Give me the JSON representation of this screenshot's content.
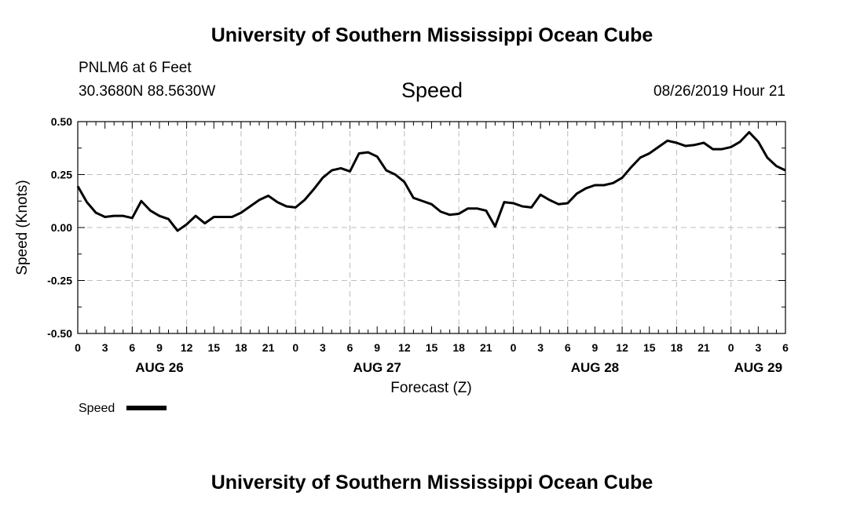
{
  "header": {
    "title": "University of Southern Mississippi Ocean Cube",
    "station": "PNLM6 at 6 Feet",
    "coords": "30.3680N 88.5630W",
    "plot_title": "Speed",
    "issued": "08/26/2019 Hour 21"
  },
  "footer": {
    "title": "University of Southern Mississippi Ocean Cube"
  },
  "legend": {
    "label": "Speed"
  },
  "chart_data": {
    "type": "line",
    "title": "Speed",
    "xlabel": "Forecast (Z)",
    "ylabel": "Speed (Knots)",
    "ylim": [
      -0.5,
      0.5
    ],
    "yticks": [
      -0.5,
      -0.25,
      0.0,
      0.25,
      0.5
    ],
    "ytick_labels": [
      "-0.50",
      "-0.25",
      "0.00",
      "0.25",
      "0.50"
    ],
    "xlim_hours": [
      0,
      78
    ],
    "xtick_hours": [
      0,
      3,
      6,
      9,
      12,
      15,
      18,
      21,
      24,
      27,
      30,
      33,
      36,
      39,
      42,
      45,
      48,
      51,
      54,
      57,
      60,
      63,
      66,
      69,
      72,
      75,
      78
    ],
    "xtick_labels": [
      "0",
      "3",
      "6",
      "9",
      "12",
      "15",
      "18",
      "21",
      "0",
      "3",
      "6",
      "9",
      "12",
      "15",
      "18",
      "21",
      "0",
      "3",
      "6",
      "9",
      "12",
      "15",
      "18",
      "21",
      "0",
      "3",
      "6"
    ],
    "date_labels": [
      {
        "hour": 9,
        "label": "AUG 26"
      },
      {
        "hour": 33,
        "label": "AUG 27"
      },
      {
        "hour": 57,
        "label": "AUG 28"
      },
      {
        "hour": 75,
        "label": "AUG 29"
      }
    ],
    "grid": true,
    "legend_position": "bottom-left",
    "series": [
      {
        "name": "Speed",
        "color": "#000000",
        "x": [
          0,
          1,
          2,
          3,
          4,
          5,
          6,
          7,
          8,
          9,
          10,
          11,
          12,
          13,
          14,
          15,
          16,
          17,
          18,
          19,
          20,
          21,
          22,
          23,
          24,
          25,
          26,
          27,
          28,
          29,
          30,
          31,
          32,
          33,
          34,
          35,
          36,
          37,
          38,
          39,
          40,
          41,
          42,
          43,
          44,
          45,
          46,
          47,
          48,
          49,
          50,
          51,
          52,
          53,
          54,
          55,
          56,
          57,
          58,
          59,
          60,
          61,
          62,
          63,
          64,
          65,
          66,
          67,
          68,
          69,
          70,
          71,
          72,
          73,
          74,
          75,
          76,
          77,
          78
        ],
        "y": [
          0.195,
          0.12,
          0.07,
          0.05,
          0.055,
          0.055,
          0.045,
          0.125,
          0.08,
          0.055,
          0.04,
          -0.015,
          0.015,
          0.055,
          0.02,
          0.05,
          0.05,
          0.05,
          0.07,
          0.1,
          0.13,
          0.15,
          0.12,
          0.1,
          0.095,
          0.13,
          0.18,
          0.235,
          0.27,
          0.28,
          0.265,
          0.35,
          0.355,
          0.335,
          0.27,
          0.25,
          0.215,
          0.14,
          0.125,
          0.11,
          0.075,
          0.06,
          0.065,
          0.09,
          0.09,
          0.08,
          0.005,
          0.12,
          0.115,
          0.1,
          0.095,
          0.155,
          0.13,
          0.11,
          0.115,
          0.16,
          0.185,
          0.2,
          0.2,
          0.21,
          0.235,
          0.285,
          0.33,
          0.35,
          0.38,
          0.41,
          0.4,
          0.385,
          0.39,
          0.4,
          0.37,
          0.37,
          0.38,
          0.405,
          0.45,
          0.405,
          0.33,
          0.29,
          0.27
        ]
      }
    ]
  }
}
